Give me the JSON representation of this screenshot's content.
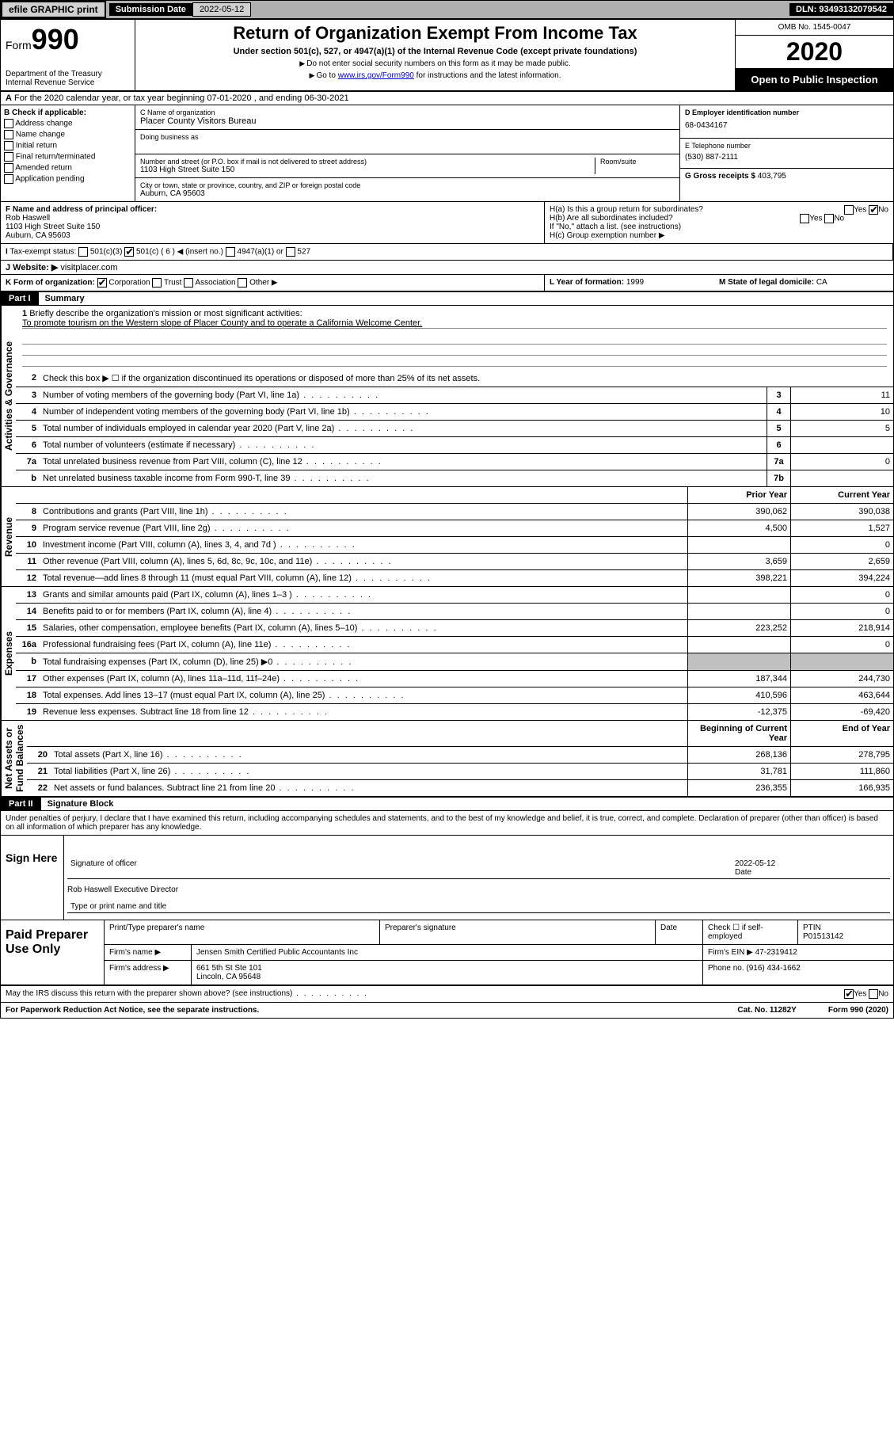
{
  "topbar": {
    "efile": "efile GRAPHIC print",
    "subdate_lbl": "Submission Date",
    "subdate": "2022-05-12",
    "dln": "DLN: 93493132079542"
  },
  "header": {
    "form_prefix": "Form",
    "form_num": "990",
    "title": "Return of Organization Exempt From Income Tax",
    "sub": "Under section 501(c), 527, or 4947(a)(1) of the Internal Revenue Code (except private foundations)",
    "note1": "Do not enter social security numbers on this form as it may be made public.",
    "note2_pre": "Go to ",
    "note2_link": "www.irs.gov/Form990",
    "note2_post": " for instructions and the latest information.",
    "dept": "Department of the Treasury\nInternal Revenue Service",
    "omb": "OMB No. 1545-0047",
    "year": "2020",
    "openpub": "Open to Public Inspection"
  },
  "row_a": "For the 2020 calendar year, or tax year beginning 07-01-2020   , and ending 06-30-2021",
  "col_b": {
    "hdr": "B Check if applicable:",
    "items": [
      "Address change",
      "Name change",
      "Initial return",
      "Final return/terminated",
      "Amended return",
      "Application pending"
    ]
  },
  "col_c": {
    "name_lbl": "C Name of organization",
    "name": "Placer County Visitors Bureau",
    "dba_lbl": "Doing business as",
    "addr_lbl": "Number and street (or P.O. box if mail is not delivered to street address)",
    "room_lbl": "Room/suite",
    "addr": "1103 High Street Suite 150",
    "city_lbl": "City or town, state or province, country, and ZIP or foreign postal code",
    "city": "Auburn, CA  95603"
  },
  "col_d": {
    "ein_lbl": "D Employer identification number",
    "ein": "68-0434167",
    "tel_lbl": "E Telephone number",
    "tel": "(530) 887-2111",
    "gross_lbl": "G Gross receipts $",
    "gross": "403,795"
  },
  "row_f": {
    "lbl": "F  Name and address of principal officer:",
    "name": "Rob Haswell",
    "addr": "1103 High Street Suite 150\nAuburn, CA  95603"
  },
  "row_h": {
    "ha": "H(a)  Is this a group return for subordinates?",
    "hb": "H(b)  Are all subordinates included?",
    "hb_note": "If \"No,\" attach a list. (see instructions)",
    "hc": "H(c)  Group exemption number ▶"
  },
  "tax_status": {
    "lbl": "Tax-exempt status:",
    "c6": "501(c) ( 6 ) ◀ (insert no.)"
  },
  "row_j": {
    "lbl": "J Website: ▶",
    "val": "visitplacer.com"
  },
  "row_k": {
    "lbl": "K Form of organization:",
    "corp": "Corporation",
    "trust": "Trust",
    "assoc": "Association",
    "other": "Other ▶",
    "l_lbl": "L Year of formation:",
    "l_val": "1999",
    "m_lbl": "M State of legal domicile:",
    "m_val": "CA"
  },
  "part1": {
    "badge": "Part I",
    "title": "Summary"
  },
  "mission": {
    "num": "1",
    "lbl": "Briefly describe the organization's mission or most significant activities:",
    "txt": "To promote tourism on the Western slope of Placer County and to operate a California Welcome Center."
  },
  "line2": {
    "num": "2",
    "txt": "Check this box ▶ ☐ if the organization discontinued its operations or disposed of more than 25% of its net assets."
  },
  "gov_rows": [
    {
      "n": "3",
      "t": "Number of voting members of the governing body (Part VI, line 1a)",
      "b": "3",
      "v": "11"
    },
    {
      "n": "4",
      "t": "Number of independent voting members of the governing body (Part VI, line 1b)",
      "b": "4",
      "v": "10"
    },
    {
      "n": "5",
      "t": "Total number of individuals employed in calendar year 2020 (Part V, line 2a)",
      "b": "5",
      "v": "5"
    },
    {
      "n": "6",
      "t": "Total number of volunteers (estimate if necessary)",
      "b": "6",
      "v": ""
    },
    {
      "n": "7a",
      "t": "Total unrelated business revenue from Part VIII, column (C), line 12",
      "b": "7a",
      "v": "0"
    },
    {
      "n": "b",
      "t": "Net unrelated business taxable income from Form 990-T, line 39",
      "b": "7b",
      "v": ""
    }
  ],
  "cols_hdr": {
    "prior": "Prior Year",
    "current": "Current Year",
    "begin": "Beginning of Current Year",
    "end": "End of Year"
  },
  "revenue": [
    {
      "n": "8",
      "t": "Contributions and grants (Part VIII, line 1h)",
      "p": "390,062",
      "c": "390,038"
    },
    {
      "n": "9",
      "t": "Program service revenue (Part VIII, line 2g)",
      "p": "4,500",
      "c": "1,527"
    },
    {
      "n": "10",
      "t": "Investment income (Part VIII, column (A), lines 3, 4, and 7d )",
      "p": "",
      "c": "0"
    },
    {
      "n": "11",
      "t": "Other revenue (Part VIII, column (A), lines 5, 6d, 8c, 9c, 10c, and 11e)",
      "p": "3,659",
      "c": "2,659"
    },
    {
      "n": "12",
      "t": "Total revenue—add lines 8 through 11 (must equal Part VIII, column (A), line 12)",
      "p": "398,221",
      "c": "394,224"
    }
  ],
  "expenses": [
    {
      "n": "13",
      "t": "Grants and similar amounts paid (Part IX, column (A), lines 1–3 )",
      "p": "",
      "c": "0"
    },
    {
      "n": "14",
      "t": "Benefits paid to or for members (Part IX, column (A), line 4)",
      "p": "",
      "c": "0"
    },
    {
      "n": "15",
      "t": "Salaries, other compensation, employee benefits (Part IX, column (A), lines 5–10)",
      "p": "223,252",
      "c": "218,914"
    },
    {
      "n": "16a",
      "t": "Professional fundraising fees (Part IX, column (A), line 11e)",
      "p": "",
      "c": "0"
    },
    {
      "n": "b",
      "t": "Total fundraising expenses (Part IX, column (D), line 25) ▶0",
      "p": "shaded",
      "c": "shaded"
    },
    {
      "n": "17",
      "t": "Other expenses (Part IX, column (A), lines 11a–11d, 11f–24e)",
      "p": "187,344",
      "c": "244,730"
    },
    {
      "n": "18",
      "t": "Total expenses. Add lines 13–17 (must equal Part IX, column (A), line 25)",
      "p": "410,596",
      "c": "463,644"
    },
    {
      "n": "19",
      "t": "Revenue less expenses. Subtract line 18 from line 12",
      "p": "-12,375",
      "c": "-69,420"
    }
  ],
  "netassets": [
    {
      "n": "20",
      "t": "Total assets (Part X, line 16)",
      "p": "268,136",
      "c": "278,795"
    },
    {
      "n": "21",
      "t": "Total liabilities (Part X, line 26)",
      "p": "31,781",
      "c": "111,860"
    },
    {
      "n": "22",
      "t": "Net assets or fund balances. Subtract line 21 from line 20",
      "p": "236,355",
      "c": "166,935"
    }
  ],
  "vert": {
    "gov": "Activities & Governance",
    "rev": "Revenue",
    "exp": "Expenses",
    "net": "Net Assets or\nFund Balances"
  },
  "part2": {
    "badge": "Part II",
    "title": "Signature Block"
  },
  "penalty": "Under penalties of perjury, I declare that I have examined this return, including accompanying schedules and statements, and to the best of my knowledge and belief, it is true, correct, and complete. Declaration of preparer (other than officer) is based on all information of which preparer has any knowledge.",
  "sign": {
    "here": "Sign Here",
    "sig_lbl": "Signature of officer",
    "date_lbl": "Date",
    "date": "2022-05-12",
    "name": "Rob Haswell Executive Director",
    "type_lbl": "Type or print name and title"
  },
  "prep": {
    "hdr": "Paid Preparer Use Only",
    "r1": {
      "c1": "Print/Type preparer's name",
      "c2": "Preparer's signature",
      "c3": "Date",
      "c4_lbl": "Check ☐ if self-employed",
      "c5_lbl": "PTIN",
      "c5": "P01513142"
    },
    "r2": {
      "lbl": "Firm's name    ▶",
      "val": "Jensen Smith Certified Public Accountants Inc",
      "ein_lbl": "Firm's EIN ▶",
      "ein": "47-2319412"
    },
    "r3": {
      "lbl": "Firm's address ▶",
      "val": "661 5th St Ste 101",
      "city": "Lincoln, CA  95648",
      "tel_lbl": "Phone no.",
      "tel": "(916) 434-1662"
    }
  },
  "footer": {
    "irs": "May the IRS discuss this return with the preparer shown above? (see instructions)",
    "paperwork": "For Paperwork Reduction Act Notice, see the separate instructions.",
    "cat": "Cat. No. 11282Y",
    "form": "Form 990 (2020)"
  }
}
